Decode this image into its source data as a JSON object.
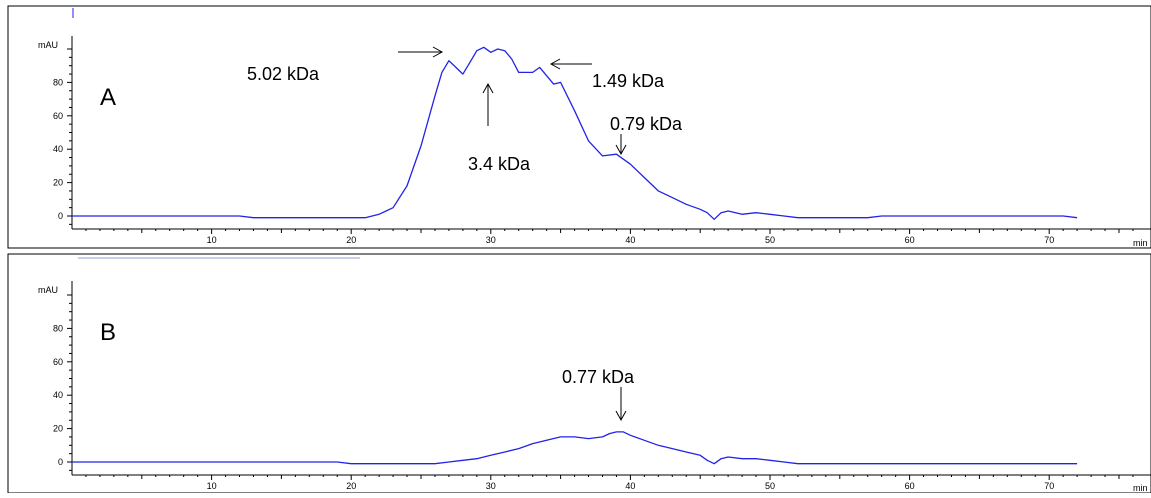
{
  "colors": {
    "trace": "#2323e8",
    "axis": "#000000",
    "frame": "#000000"
  },
  "chart_data": [
    {
      "type": "line",
      "panel_label": "A",
      "y_unit": "mAU",
      "x_unit": "min",
      "xlim": [
        0,
        72
      ],
      "ylim": [
        -5,
        108
      ],
      "x_ticks": [
        10,
        20,
        30,
        40,
        50,
        60,
        70
      ],
      "y_ticks": [
        0,
        20,
        40,
        60,
        80
      ],
      "grid": false,
      "series": [
        {
          "x": [
            0,
            12,
            13,
            20,
            21,
            22,
            23,
            24,
            25,
            26,
            26.5,
            27,
            27.5,
            28,
            28.5,
            29,
            29.5,
            30,
            30.5,
            31,
            31.5,
            32,
            32.5,
            33,
            33.5,
            34,
            34.5,
            35,
            36,
            37,
            38,
            39,
            40,
            41,
            42,
            43,
            44,
            45,
            45.5,
            46,
            46.5,
            47,
            48,
            49,
            50,
            51,
            52,
            57,
            58,
            71,
            72
          ],
          "y": [
            0,
            0,
            -1,
            -1,
            -1,
            1,
            5,
            18,
            42,
            72,
            86,
            93,
            89,
            85,
            92,
            99,
            101,
            98,
            100,
            99,
            94,
            86,
            86,
            86,
            89,
            84,
            79,
            80,
            63,
            45,
            36,
            37,
            31,
            23,
            15,
            11,
            7,
            4,
            2,
            -2,
            2,
            3,
            1,
            2,
            1,
            0,
            -1,
            -1,
            0,
            0,
            -1
          ]
        }
      ],
      "annotations": [
        {
          "text": "5.02 kDa",
          "x": 27,
          "y": 93,
          "arrow": "right"
        },
        {
          "text": "3.4 kDa",
          "x": 29.5,
          "y": 85,
          "arrow": "up"
        },
        {
          "text": "1.49 kDa",
          "x": 33.5,
          "y": 89,
          "arrow": "left"
        },
        {
          "text": "0.79 kDa",
          "x": 39,
          "y": 36,
          "arrow": "down"
        }
      ]
    },
    {
      "type": "line",
      "panel_label": "B",
      "y_unit": "mAU",
      "x_unit": "min",
      "xlim": [
        0,
        72
      ],
      "ylim": [
        -5,
        108
      ],
      "x_ticks": [
        10,
        20,
        30,
        40,
        50,
        60,
        70
      ],
      "y_ticks": [
        0,
        20,
        40,
        60,
        80
      ],
      "grid": false,
      "series": [
        {
          "x": [
            0,
            19,
            20,
            26,
            27,
            28,
            29,
            30,
            31,
            32,
            33,
            34,
            35,
            36,
            37,
            38,
            38.5,
            39,
            39.5,
            40,
            41,
            42,
            43,
            44,
            45,
            45.5,
            46,
            46.5,
            47,
            48,
            49,
            50,
            51,
            52,
            72
          ],
          "y": [
            0,
            0,
            -1,
            -1,
            0,
            1,
            2,
            4,
            6,
            8,
            11,
            13,
            15,
            15,
            14,
            15,
            17,
            18,
            18,
            16,
            13,
            10,
            8,
            6,
            4,
            1,
            -1,
            2,
            3,
            2,
            2,
            1,
            0,
            -1,
            -1
          ]
        }
      ],
      "annotations": [
        {
          "text": "0.77 kDa",
          "x": 39,
          "y": 18,
          "arrow": "down"
        }
      ]
    }
  ]
}
